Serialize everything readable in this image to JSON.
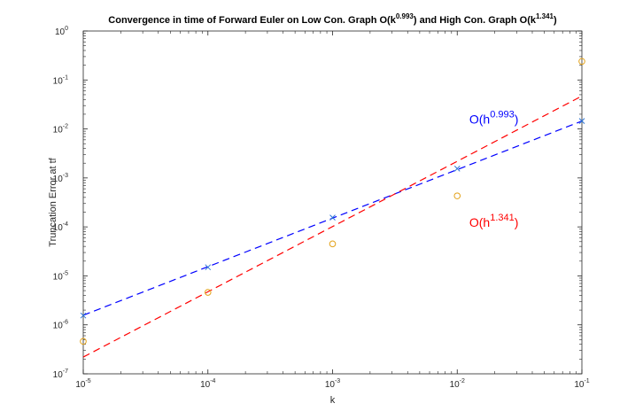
{
  "chart_data": {
    "type": "scatter",
    "title": "Convergence in time of Forward Euler on Low Con. Graph O(k^0.993) and High Con. Graph O(k^1.341)",
    "title_parts": {
      "a": "Convergence in time of Forward Euler on Low Con. Graph O(k",
      "a_sup": "0.993",
      "b": ") and High Con. Graph O(k",
      "b_sup": "1.341",
      "c": ")"
    },
    "xlabel": "k",
    "ylabel": "Truncation Error at tf",
    "x_scale": "log",
    "y_scale": "log",
    "xlim": [
      1e-05,
      0.1
    ],
    "ylim": [
      1e-07,
      1
    ],
    "grid": false,
    "x_ticks": [
      {
        "value": 1e-05,
        "base": "10",
        "exp": "-5"
      },
      {
        "value": 0.0001,
        "base": "10",
        "exp": "-4"
      },
      {
        "value": 0.001,
        "base": "10",
        "exp": "-3"
      },
      {
        "value": 0.01,
        "base": "10",
        "exp": "-2"
      },
      {
        "value": 0.1,
        "base": "10",
        "exp": "-1"
      }
    ],
    "y_ticks": [
      {
        "value": 1e-07,
        "base": "10",
        "exp": "-7"
      },
      {
        "value": 1e-06,
        "base": "10",
        "exp": "-6"
      },
      {
        "value": 1e-05,
        "base": "10",
        "exp": "-5"
      },
      {
        "value": 0.0001,
        "base": "10",
        "exp": "-4"
      },
      {
        "value": 0.001,
        "base": "10",
        "exp": "-3"
      },
      {
        "value": 0.01,
        "base": "10",
        "exp": "-2"
      },
      {
        "value": 0.1,
        "base": "10",
        "exp": "-1"
      },
      {
        "value": 1,
        "base": "10",
        "exp": "0"
      }
    ],
    "series": [
      {
        "marker": "x",
        "color": "#2e76d6",
        "x": [
          1e-05,
          0.0001,
          0.001,
          0.01,
          0.1
        ],
        "y": [
          1.55e-06,
          1.5e-05,
          0.000155,
          0.00155,
          0.0145
        ]
      },
      {
        "marker": "o",
        "color": "#e3a21a",
        "x": [
          1e-05,
          0.0001,
          0.001,
          0.01,
          0.1
        ],
        "y": [
          4.6e-07,
          4.6e-06,
          4.5e-05,
          0.00043,
          0.24
        ]
      }
    ],
    "fit_lines": [
      {
        "color": "#0000ff",
        "style": "dashed",
        "x": [
          1e-05,
          0.1
        ],
        "y": [
          1.57e-06,
          0.0145
        ]
      },
      {
        "color": "#ff0000",
        "style": "dashed",
        "x": [
          1e-05,
          0.1
        ],
        "y": [
          2.2e-07,
          0.047
        ]
      }
    ],
    "annotations": [
      {
        "base": "O(h",
        "sup": "0.993",
        "close": ")",
        "color": "#0000ff",
        "x": 0.0125,
        "y": 0.013
      },
      {
        "base": "O(h",
        "sup": "1.341",
        "close": ")",
        "color": "#ff0000",
        "x": 0.0125,
        "y": 0.0001
      }
    ]
  }
}
